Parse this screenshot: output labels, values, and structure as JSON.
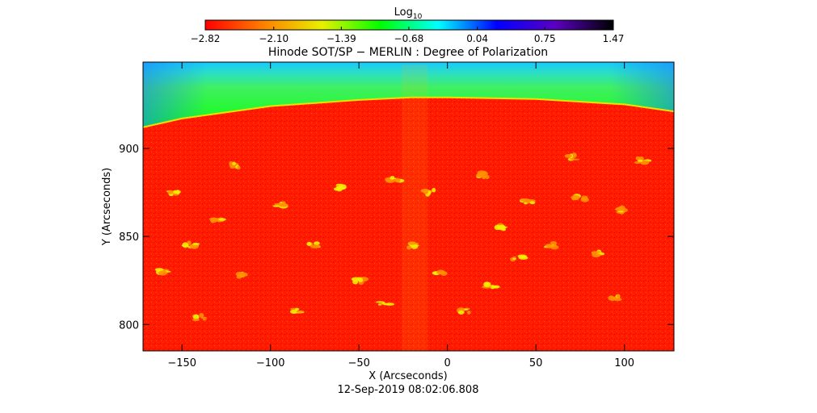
{
  "chart_data": {
    "type": "heatmap",
    "title": "Hinode SOT/SP − MERLIN : Degree of Polarization",
    "xlabel": "X (Arcseconds)",
    "ylabel": "Y (Arcseconds)",
    "timestamp": "12-Sep-2019 08:02:06.808",
    "xlim": [
      -172,
      128
    ],
    "ylim": [
      785,
      949
    ],
    "x_ticks": [
      -150,
      -100,
      -50,
      0,
      50,
      100
    ],
    "y_ticks": [
      800,
      850,
      900
    ],
    "x_tick_labels": [
      "−150",
      "−100",
      "−50",
      "0",
      "50",
      "100"
    ],
    "y_tick_labels": [
      "800",
      "850",
      "900"
    ],
    "colorbar": {
      "label_base": "Log",
      "label_sub": "10",
      "ticks": [
        -2.82,
        -2.1,
        -1.39,
        -0.68,
        0.04,
        0.75,
        1.47
      ],
      "tick_labels": [
        "−2.82",
        "−2.10",
        "−1.39",
        "−0.68",
        "0.04",
        "0.75",
        "1.47"
      ],
      "colors": [
        "#ff0000",
        "#ff8000",
        "#e8f000",
        "#00ff00",
        "#00ffff",
        "#0000ff",
        "#5a00c0",
        "#000000"
      ]
    },
    "limb": {
      "description": "solar limb boundary",
      "points": [
        [
          -172,
          912
        ],
        [
          -150,
          917
        ],
        [
          -100,
          924
        ],
        [
          -50,
          927.5
        ],
        [
          -20,
          929
        ],
        [
          0,
          929
        ],
        [
          50,
          928
        ],
        [
          100,
          925
        ],
        [
          128,
          921
        ]
      ]
    },
    "regions": {
      "disk_color": "#ff1a00",
      "off_limb_colors": [
        "#00ff00",
        "#60e840",
        "#00d8ff",
        "#0090ff"
      ]
    },
    "active_patches": [
      [
        -140,
        804
      ],
      [
        -115,
        828
      ],
      [
        -95,
        868
      ],
      [
        -120,
        890
      ],
      [
        -60,
        878
      ],
      [
        -30,
        882
      ],
      [
        -10,
        875
      ],
      [
        20,
        885
      ],
      [
        45,
        870
      ],
      [
        60,
        845
      ],
      [
        85,
        840
      ],
      [
        95,
        815
      ],
      [
        -50,
        825
      ],
      [
        -35,
        812
      ],
      [
        -5,
        830
      ],
      [
        10,
        808
      ],
      [
        25,
        822
      ],
      [
        -75,
        845
      ],
      [
        -130,
        860
      ],
      [
        -155,
        875
      ],
      [
        70,
        895
      ],
      [
        110,
        893
      ],
      [
        -160,
        830
      ],
      [
        -145,
        845
      ],
      [
        40,
        838
      ],
      [
        75,
        872
      ],
      [
        -85,
        808
      ],
      [
        100,
        865
      ],
      [
        -20,
        845
      ],
      [
        30,
        855
      ]
    ]
  }
}
